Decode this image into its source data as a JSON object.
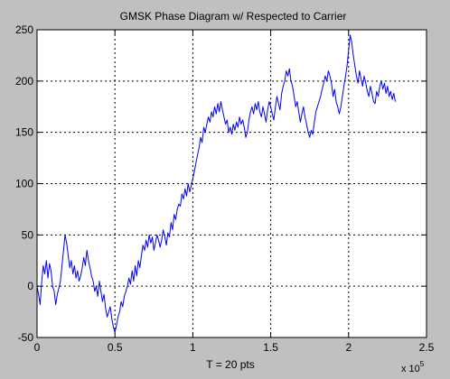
{
  "figure": {
    "background_color": "#c0c0c0",
    "axes_background_color": "#ffffff",
    "line_color": "#0000ff"
  },
  "chart_data": {
    "type": "line",
    "title": "GMSK Phase Diagram  w/ Respected to Carrier",
    "xlabel": "T = 20 pts",
    "ylabel": "",
    "x_multiplier_label": "x 10",
    "x_multiplier_exponent": "5",
    "xlim": [
      0,
      250000
    ],
    "ylim": [
      -50,
      250
    ],
    "xticks": [
      0,
      50000,
      100000,
      150000,
      200000,
      250000
    ],
    "xtick_labels": [
      "0",
      "0.5",
      "1",
      "1.5",
      "2",
      "2.5"
    ],
    "yticks": [
      -50,
      0,
      50,
      100,
      150,
      200,
      250
    ],
    "ytick_labels": [
      "-50",
      "0",
      "50",
      "100",
      "150",
      "200",
      "250"
    ],
    "grid": true,
    "grid_style": "dotted",
    "series": [
      {
        "color": "#0000ff",
        "x": [
          0,
          1000,
          2000,
          3000,
          4000,
          5000,
          6000,
          7000,
          8000,
          9000,
          10000,
          11000,
          12000,
          13000,
          14000,
          15000,
          16000,
          17000,
          18000,
          19000,
          20000,
          21000,
          22000,
          23000,
          24000,
          25000,
          26000,
          27000,
          28000,
          29000,
          30000,
          31000,
          32000,
          33000,
          34000,
          35000,
          36000,
          37000,
          38000,
          39000,
          40000,
          41000,
          42000,
          43000,
          44000,
          45000,
          46000,
          47000,
          48000,
          49000,
          50000,
          51000,
          52000,
          53000,
          54000,
          55000,
          56000,
          57000,
          58000,
          59000,
          60000,
          61000,
          62000,
          63000,
          64000,
          65000,
          66000,
          67000,
          68000,
          69000,
          70000,
          71000,
          72000,
          73000,
          74000,
          75000,
          76000,
          77000,
          78000,
          79000,
          80000,
          81000,
          82000,
          83000,
          84000,
          85000,
          86000,
          87000,
          88000,
          89000,
          90000,
          91000,
          92000,
          93000,
          94000,
          95000,
          96000,
          97000,
          98000,
          99000,
          100000,
          101000,
          102000,
          103000,
          104000,
          105000,
          106000,
          107000,
          108000,
          109000,
          110000,
          111000,
          112000,
          113000,
          114000,
          115000,
          116000,
          117000,
          118000,
          119000,
          120000,
          121000,
          122000,
          123000,
          124000,
          125000,
          126000,
          127000,
          128000,
          129000,
          130000,
          131000,
          132000,
          133000,
          134000,
          135000,
          136000,
          137000,
          138000,
          139000,
          140000,
          141000,
          142000,
          143000,
          144000,
          145000,
          146000,
          147000,
          148000,
          149000,
          150000,
          151000,
          152000,
          153000,
          154000,
          155000,
          156000,
          157000,
          158000,
          159000,
          160000,
          161000,
          162000,
          163000,
          164000,
          165000,
          166000,
          167000,
          168000,
          169000,
          170000,
          171000,
          172000,
          173000,
          174000,
          175000,
          176000,
          177000,
          178000,
          179000,
          180000,
          181000,
          182000,
          183000,
          184000,
          185000,
          186000,
          187000,
          188000,
          189000,
          190000,
          191000,
          192000,
          193000,
          194000,
          195000,
          196000,
          197000,
          198000,
          199000,
          200000,
          201000,
          202000,
          203000,
          204000,
          205000,
          206000,
          207000,
          208000,
          209000,
          210000,
          211000,
          212000,
          213000,
          214000,
          215000,
          216000,
          217000,
          218000,
          219000,
          220000,
          221000,
          222000,
          223000,
          224000,
          225000,
          226000,
          227000,
          228000,
          229000,
          230000
        ],
        "y": [
          0,
          -8,
          -18,
          5,
          20,
          12,
          25,
          8,
          22,
          15,
          0,
          -5,
          -18,
          -8,
          -2,
          5,
          20,
          35,
          50,
          42,
          30,
          18,
          25,
          12,
          20,
          8,
          15,
          5,
          10,
          18,
          28,
          20,
          35,
          25,
          18,
          10,
          5,
          -5,
          0,
          -10,
          5,
          -5,
          -15,
          -8,
          -22,
          -30,
          -25,
          -20,
          -32,
          -40,
          -45,
          -38,
          -30,
          -25,
          -15,
          -20,
          -10,
          -5,
          0,
          8,
          2,
          15,
          5,
          20,
          10,
          25,
          18,
          30,
          40,
          35,
          45,
          38,
          50,
          42,
          48,
          35,
          42,
          50,
          45,
          38,
          45,
          55,
          48,
          40,
          52,
          48,
          62,
          55,
          70,
          65,
          75,
          80,
          78,
          90,
          85,
          95,
          88,
          100,
          92,
          98,
          105,
          112,
          120,
          128,
          135,
          145,
          140,
          155,
          150,
          158,
          165,
          160,
          170,
          165,
          175,
          168,
          178,
          170,
          180,
          172,
          165,
          158,
          162,
          150,
          155,
          148,
          158,
          152,
          160,
          155,
          165,
          158,
          162,
          155,
          145,
          150,
          162,
          170,
          175,
          168,
          178,
          172,
          180,
          170,
          165,
          175,
          168,
          160,
          172,
          180,
          175,
          168,
          162,
          175,
          185,
          178,
          172,
          188,
          195,
          200,
          210,
          205,
          212,
          200,
          195,
          185,
          175,
          180,
          170,
          160,
          168,
          175,
          165,
          158,
          150,
          145,
          152,
          148,
          160,
          170,
          175,
          180,
          185,
          192,
          198,
          205,
          200,
          210,
          205,
          198,
          185,
          192,
          180,
          175,
          168,
          175,
          185,
          195,
          205,
          215,
          230,
          245,
          238,
          225,
          215,
          205,
          198,
          210,
          202,
          195,
          205,
          198,
          190,
          185,
          195,
          188,
          180,
          178,
          190,
          185,
          195,
          200,
          192,
          198,
          188,
          195,
          185,
          190,
          182,
          188,
          180
        ]
      }
    ]
  }
}
